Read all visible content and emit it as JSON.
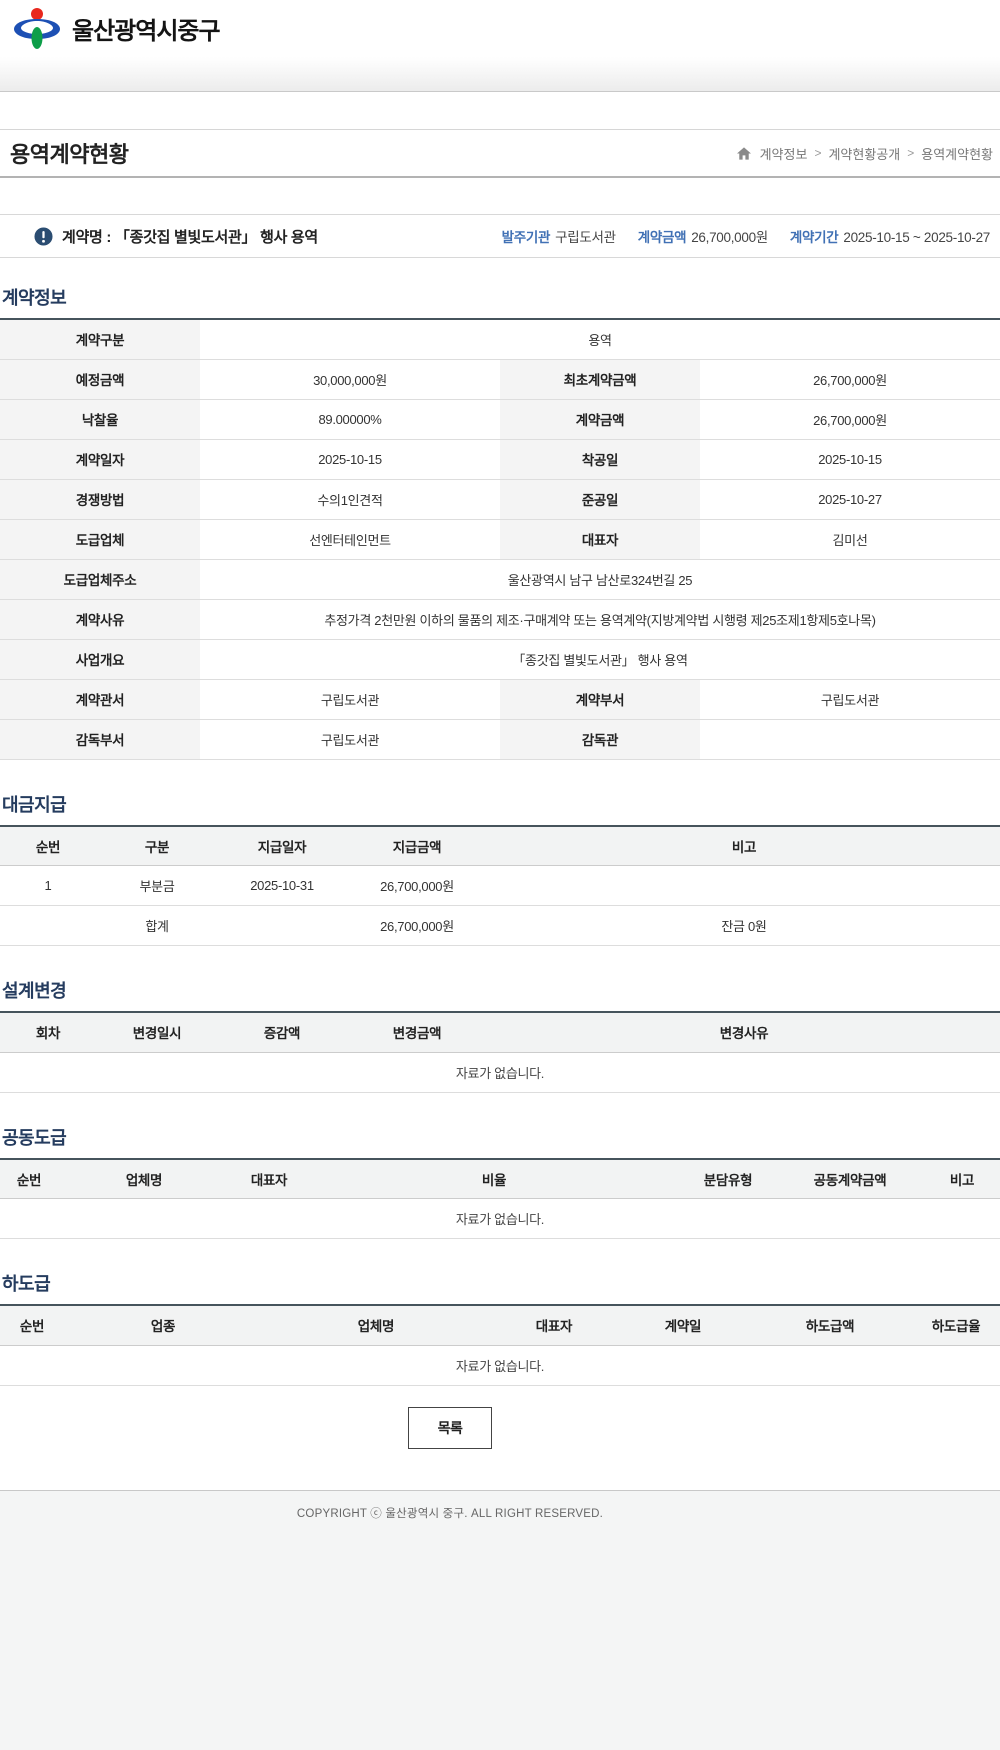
{
  "header": {
    "logo_text": "울산광역시중구"
  },
  "page": {
    "title": "용역계약현황"
  },
  "breadcrumb": {
    "separator": ">",
    "items": [
      "계약정보",
      "계약현황공개",
      "용역계약현황"
    ]
  },
  "contract_banner": {
    "name": "계약명 : 「종갓집 별빛도서관」 행사 용역",
    "info": [
      {
        "label": "발주기관",
        "value": "구립도서관"
      },
      {
        "label": "계약금액",
        "value": "26,700,000원"
      },
      {
        "label": "계약기간",
        "value": "2025-10-15 ~ 2025-10-27"
      }
    ]
  },
  "contract_info": {
    "title": "계약정보",
    "rows": [
      [
        {
          "h": "계약구분"
        },
        {
          "d": "용역",
          "span": 3
        }
      ],
      [
        {
          "h": "예정금액"
        },
        {
          "d": "30,000,000원"
        },
        {
          "h": "최초계약금액"
        },
        {
          "d": "26,700,000원"
        }
      ],
      [
        {
          "h": "낙찰율"
        },
        {
          "d": "89.00000%"
        },
        {
          "h": "계약금액"
        },
        {
          "d": "26,700,000원"
        }
      ],
      [
        {
          "h": "계약일자"
        },
        {
          "d": "2025-10-15"
        },
        {
          "h": "착공일"
        },
        {
          "d": "2025-10-15"
        }
      ],
      [
        {
          "h": "경쟁방법"
        },
        {
          "d": "수의1인견적"
        },
        {
          "h": "준공일"
        },
        {
          "d": "2025-10-27"
        }
      ],
      [
        {
          "h": "도급업체"
        },
        {
          "d": "선엔터테인먼트"
        },
        {
          "h": "대표자"
        },
        {
          "d": "김미선"
        }
      ],
      [
        {
          "h": "도급업체주소"
        },
        {
          "d": "울산광역시 남구 남산로324번길 25",
          "span": 3
        }
      ],
      [
        {
          "h": "계약사유"
        },
        {
          "d": "추정가격 2천만원 이하의 물품의 제조·구매계약 또는 용역계약(지방계약법 시행령 제25조제1항제5호나목)",
          "span": 3
        }
      ],
      [
        {
          "h": "사업개요"
        },
        {
          "d": "「종갓집 별빛도서관」 행사 용역",
          "span": 3
        }
      ],
      [
        {
          "h": "계약관서"
        },
        {
          "d": "구립도서관"
        },
        {
          "h": "계약부서"
        },
        {
          "d": "구립도서관"
        }
      ],
      [
        {
          "h": "감독부서"
        },
        {
          "d": "구립도서관"
        },
        {
          "h": "감독관"
        },
        {
          "d": ""
        }
      ]
    ]
  },
  "payment": {
    "title": "대금지급",
    "headers": [
      "순번",
      "구분",
      "지급일자",
      "지급금액",
      "비고"
    ],
    "rows": [
      [
        "1",
        "부분금",
        "2025-10-31",
        "26,700,000원",
        ""
      ],
      [
        "",
        "합계",
        "",
        "26,700,000원",
        "잔금 0원"
      ]
    ]
  },
  "design_change": {
    "title": "설계변경",
    "headers": [
      "회차",
      "변경일시",
      "증감액",
      "변경금액",
      "변경사유"
    ],
    "rows": [],
    "empty_text": "자료가 없습니다."
  },
  "joint_contract": {
    "title": "공동도급",
    "headers": [
      "순번",
      "업체명",
      "대표자",
      "비율",
      "분담유형",
      "공동계약금액",
      "비고"
    ],
    "rows": [],
    "empty_text": "자료가 없습니다."
  },
  "subcontract": {
    "title": "하도급",
    "headers": [
      "순번",
      "업종",
      "업체명",
      "대표자",
      "계약일",
      "하도급액",
      "하도급율"
    ],
    "rows": [],
    "empty_text": "자료가 없습니다."
  },
  "actions": {
    "list_button": "목록"
  },
  "footer": {
    "copyright": "COPYRIGHT ⓒ 울산광역시 중구. ALL RIGHT RESERVED."
  }
}
